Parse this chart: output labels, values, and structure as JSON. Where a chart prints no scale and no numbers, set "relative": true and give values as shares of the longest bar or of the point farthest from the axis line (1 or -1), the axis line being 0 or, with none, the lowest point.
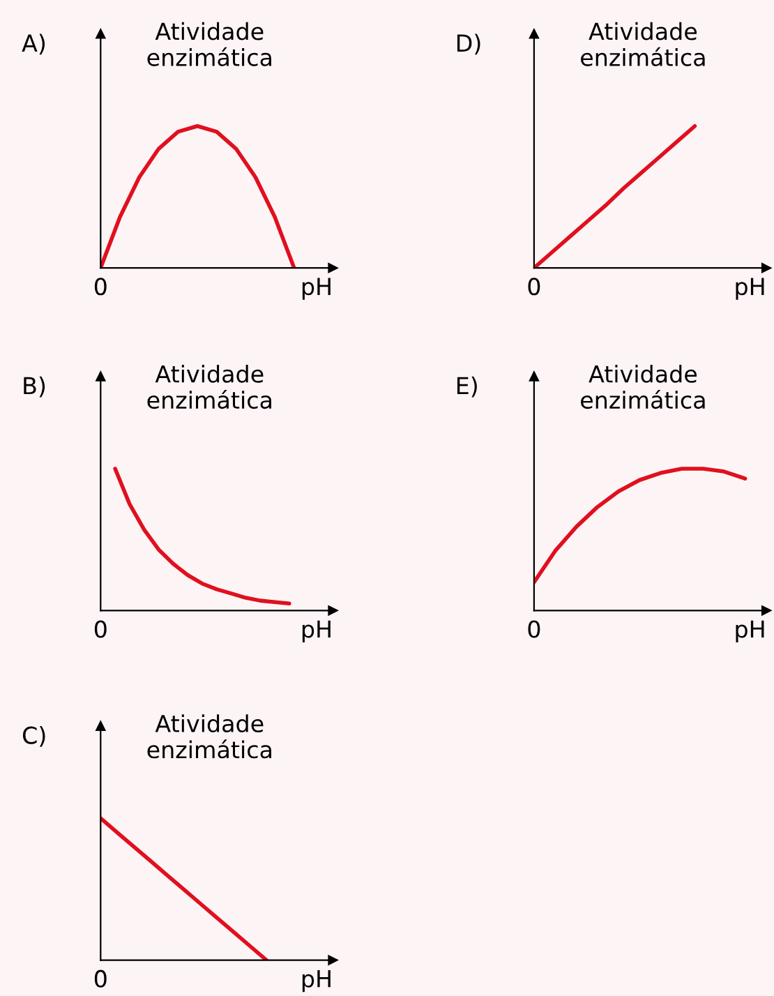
{
  "chart_data": [
    {
      "type": "line",
      "title": "A)",
      "ylabel": "Atividade\nenzimática",
      "xlabel": "pH",
      "annotations": [
        "0"
      ],
      "relative": true,
      "color": "#e0101e",
      "categories": [
        null,
        null,
        null,
        null,
        null,
        null,
        null,
        null,
        null,
        null,
        null,
        null
      ],
      "values": [
        0,
        0.36,
        0.64,
        0.84,
        0.96,
        1,
        0.96,
        0.84,
        0.64,
        0.36,
        0,
        null
      ]
    },
    {
      "type": "line",
      "title": "D)",
      "ylabel": "Atividade\nenzimática",
      "xlabel": "pH",
      "annotations": [
        "0"
      ],
      "relative": true,
      "color": "#e0101e",
      "categories": [
        null,
        null,
        null,
        null,
        null,
        null,
        null,
        null,
        null,
        null,
        null,
        null,
        null
      ],
      "values": [
        0,
        0.11,
        0.22,
        0.33,
        0.44,
        0.56,
        0.67,
        0.78,
        0.89,
        1,
        null,
        null,
        null
      ]
    },
    {
      "type": "line",
      "title": "B)",
      "ylabel": "Atividade\nenzimática",
      "xlabel": "pH",
      "annotations": [
        "0"
      ],
      "relative": true,
      "color": "#e0101e",
      "categories": [
        null,
        null,
        null,
        null,
        null,
        null,
        null,
        null,
        null,
        null,
        null,
        null,
        null,
        null,
        null,
        null
      ],
      "values": [
        null,
        1,
        0.75,
        0.57,
        0.43,
        0.33,
        0.25,
        0.19,
        0.15,
        0.12,
        0.09,
        0.07,
        0.06,
        0.05,
        null,
        null
      ]
    },
    {
      "type": "line",
      "title": "E)",
      "ylabel": "Atividade\nenzimática",
      "xlabel": "pH",
      "annotations": [
        "0"
      ],
      "relative": true,
      "color": "#e0101e",
      "categories": [
        null,
        null,
        null,
        null,
        null,
        null,
        null,
        null,
        null,
        null,
        null
      ],
      "values": [
        0.2,
        0.42,
        0.59,
        0.73,
        0.84,
        0.92,
        0.97,
        1,
        1,
        0.98,
        0.93
      ]
    },
    {
      "type": "line",
      "title": "C)",
      "ylabel": "Atividade\nenzimática",
      "xlabel": "pH",
      "annotations": [
        "0"
      ],
      "relative": true,
      "color": "#e0101e",
      "categories": [
        null,
        null,
        null,
        null,
        null,
        null,
        null,
        null,
        null,
        null,
        null,
        null,
        null,
        null
      ],
      "values": [
        1,
        0.9,
        0.8,
        0.7,
        0.6,
        0.5,
        0.4,
        0.3,
        0.2,
        0.1,
        0,
        null,
        null,
        null
      ]
    }
  ]
}
